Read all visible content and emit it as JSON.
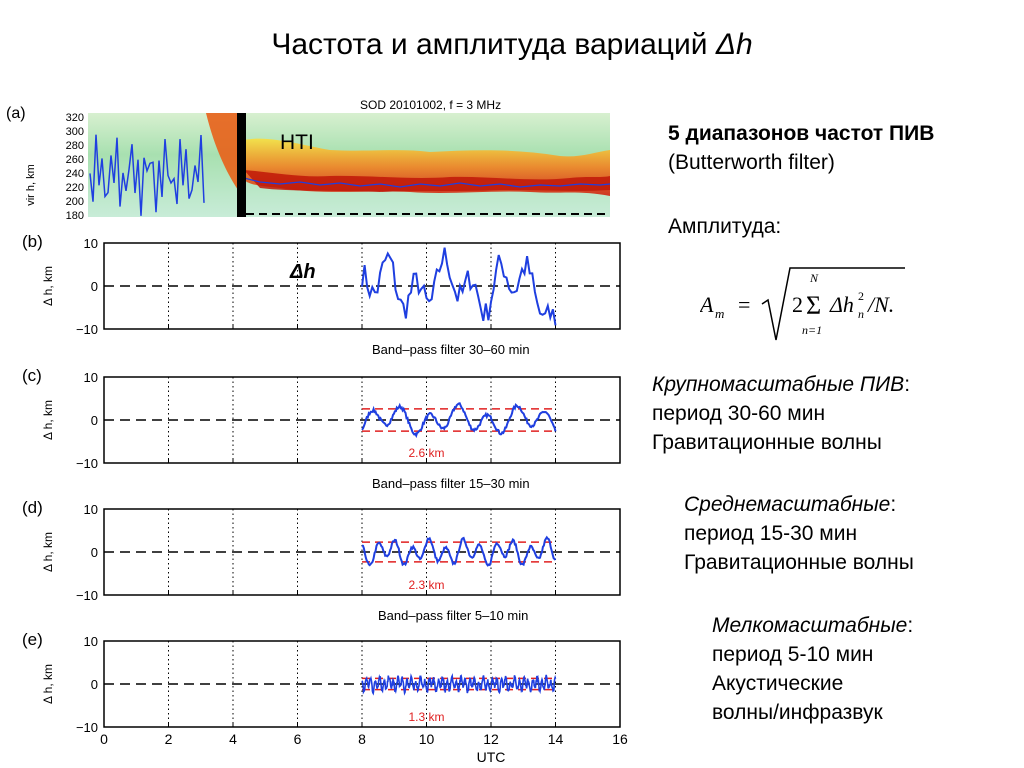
{
  "title": {
    "main": "Частота и амплитуда вариаций",
    "var": "Δh"
  },
  "right_panel": {
    "bands_title": "5 диапазонов частот ПИВ",
    "filter": "(Butterworth filter)",
    "amplitude_label": "Амплитуда:",
    "formula": {
      "lhs": "A",
      "lhs_sub": "m",
      "eq": "=",
      "two": "2",
      "sum_top": "N",
      "sum_bottom": "n=1",
      "term": "Δh",
      "term_sub": "n",
      "term_sup": "2",
      "div": "/N."
    },
    "groups": [
      {
        "title": "Крупномасштабные ПИВ",
        "colon": ":",
        "period": "период 30-60 мин",
        "desc": "Гравитационные волны"
      },
      {
        "title": "Среднемасштабные",
        "colon": ":",
        "period": "период 15-30 мин",
        "desc": "Гравитационные волны"
      },
      {
        "title": "Мелкомасштабные",
        "colon": ":",
        "period": "период 5-10 мин",
        "desc1": "Акустические",
        "desc2": "волны/инфразвук"
      }
    ]
  },
  "figure": {
    "panel_a": {
      "label": "(a)",
      "header": "SOD 20101002, f = 3 MHz",
      "ylabel": "vir h, km",
      "yticks": [
        "320",
        "300",
        "280",
        "260",
        "240",
        "220",
        "200",
        "180"
      ],
      "annotation": "HTI"
    },
    "xlabel": "UTC",
    "panels": [
      {
        "label": "(b)",
        "ylabel": "Δ h, km",
        "annotation": "Δh",
        "filter_title": "Band–pass filter 30–60 min",
        "amplitude": ""
      },
      {
        "label": "(c)",
        "ylabel": "Δ h, km",
        "annotation": "",
        "filter_title": "Band–pass filter 15–30 min",
        "amplitude": "2.6 km",
        "amp_value": 2.6
      },
      {
        "label": "(d)",
        "ylabel": "Δ h, km",
        "annotation": "",
        "filter_title": "Band–pass filter 5–10 min",
        "amplitude": "2.3 km",
        "amp_value": 2.3
      },
      {
        "label": "(e)",
        "ylabel": "Δ h, km",
        "annotation": "",
        "filter_title": "",
        "amplitude": "1.3 km",
        "amp_value": 1.3
      }
    ],
    "colors": {
      "series": "#1f3fe0",
      "amplitude": "#e02020"
    }
  },
  "chart_data": {
    "type": "line",
    "xlabel": "UTC",
    "ylabel": "Δ h, km",
    "xlim": [
      0,
      16
    ],
    "ylim": [
      -10,
      10
    ],
    "xticks": [
      0,
      2,
      4,
      6,
      8,
      10,
      12,
      14,
      16
    ],
    "yticks": [
      10,
      0,
      -10
    ],
    "data_range_utc": [
      8,
      14
    ],
    "panels": [
      {
        "id": "b",
        "series": "Δh raw"
      },
      {
        "id": "c",
        "series": "Band–pass filter 30–60 min",
        "amplitude_km": 2.6
      },
      {
        "id": "d",
        "series": "Band–pass filter 15–30 min",
        "amplitude_km": 2.3
      },
      {
        "id": "e",
        "series": "Band–pass filter 5–10 min",
        "amplitude_km": 1.3
      }
    ]
  }
}
